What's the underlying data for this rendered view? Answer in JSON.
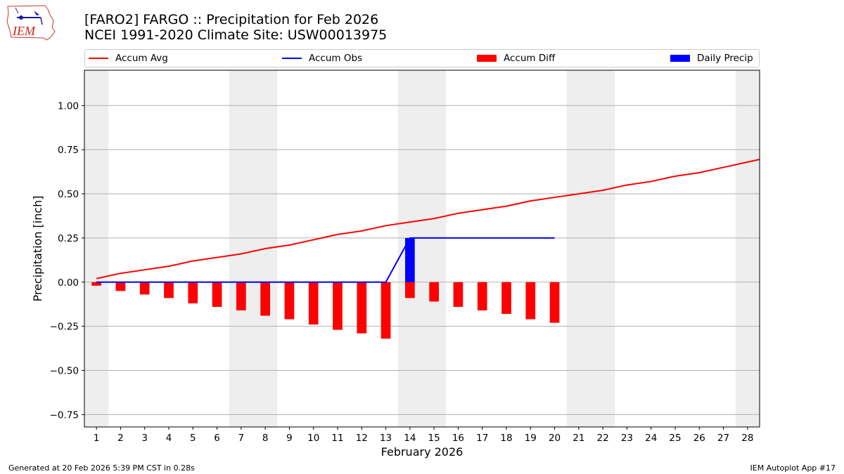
{
  "header": {
    "title": "[FARO2] FARGO :: Precipitation for Feb 2026",
    "subtitle": "NCEI 1991-2020 Climate Site: USW00013975",
    "logo_text": "IEM"
  },
  "legend": {
    "accum_avg": "Accum Avg",
    "accum_obs": "Accum Obs",
    "accum_diff": "Accum Diff",
    "daily_precip": "Daily Precip"
  },
  "colors": {
    "avg": "#ff0000",
    "obs": "#0000ff",
    "diff": "#ff0000",
    "daily": "#0000ff",
    "weekend": "#eeeeee",
    "grid": "#b0b0b0"
  },
  "footer": {
    "generated": "Generated at 20 Feb 2026 5:39 PM CST in 0.28s",
    "app": "IEM Autoplot App #17"
  },
  "chart_data": {
    "type": "bar",
    "title": "[FARO2] FARGO :: Precipitation for Feb 2026",
    "xlabel": "February 2026",
    "ylabel": "Precipitation [inch]",
    "xlim": [
      0.5,
      28.5
    ],
    "ylim": [
      -0.82,
      1.2
    ],
    "yticks": [
      1.0,
      0.75,
      0.5,
      0.25,
      0.0,
      -0.25,
      -0.5,
      -0.75
    ],
    "ytick_labels": [
      "1.00",
      "0.75",
      "0.50",
      "0.25",
      "0.00",
      "−0.25",
      "−0.50",
      "−0.75"
    ],
    "xticks": [
      1,
      2,
      3,
      4,
      5,
      6,
      7,
      8,
      9,
      10,
      11,
      12,
      13,
      14,
      15,
      16,
      17,
      18,
      19,
      20,
      21,
      22,
      23,
      24,
      25,
      26,
      27,
      28
    ],
    "weekend_ranges": [
      [
        0.5,
        1.5
      ],
      [
        6.5,
        8.5
      ],
      [
        13.5,
        15.5
      ],
      [
        20.5,
        22.5
      ],
      [
        27.5,
        28.5
      ]
    ],
    "accum_avg": {
      "days": [
        1,
        2,
        3,
        4,
        5,
        6,
        7,
        8,
        9,
        10,
        11,
        12,
        13,
        14,
        15,
        16,
        17,
        18,
        19,
        20,
        21,
        22,
        23,
        24,
        25,
        26,
        27,
        28,
        28.5
      ],
      "values": [
        0.02,
        0.05,
        0.07,
        0.09,
        0.12,
        0.14,
        0.16,
        0.19,
        0.21,
        0.24,
        0.27,
        0.29,
        0.32,
        0.34,
        0.36,
        0.39,
        0.41,
        0.43,
        0.46,
        0.48,
        0.5,
        0.52,
        0.55,
        0.57,
        0.6,
        0.62,
        0.65,
        0.68,
        0.695
      ]
    },
    "accum_obs": {
      "days": [
        1,
        2,
        3,
        4,
        5,
        6,
        7,
        8,
        9,
        10,
        11,
        12,
        13,
        14,
        15,
        16,
        17,
        18,
        19,
        20
      ],
      "values": [
        0,
        0,
        0,
        0,
        0,
        0,
        0,
        0,
        0,
        0,
        0,
        0,
        0,
        0.25,
        0.25,
        0.25,
        0.25,
        0.25,
        0.25,
        0.25
      ]
    },
    "accum_diff": {
      "days": [
        1,
        2,
        3,
        4,
        5,
        6,
        7,
        8,
        9,
        10,
        11,
        12,
        13,
        14,
        15,
        16,
        17,
        18,
        19,
        20
      ],
      "values": [
        -0.02,
        -0.05,
        -0.07,
        -0.09,
        -0.12,
        -0.14,
        -0.16,
        -0.19,
        -0.21,
        -0.24,
        -0.27,
        -0.29,
        -0.32,
        -0.09,
        -0.11,
        -0.14,
        -0.16,
        -0.18,
        -0.21,
        -0.23
      ]
    },
    "daily_precip": {
      "days": [
        14
      ],
      "values": [
        0.25
      ]
    }
  }
}
